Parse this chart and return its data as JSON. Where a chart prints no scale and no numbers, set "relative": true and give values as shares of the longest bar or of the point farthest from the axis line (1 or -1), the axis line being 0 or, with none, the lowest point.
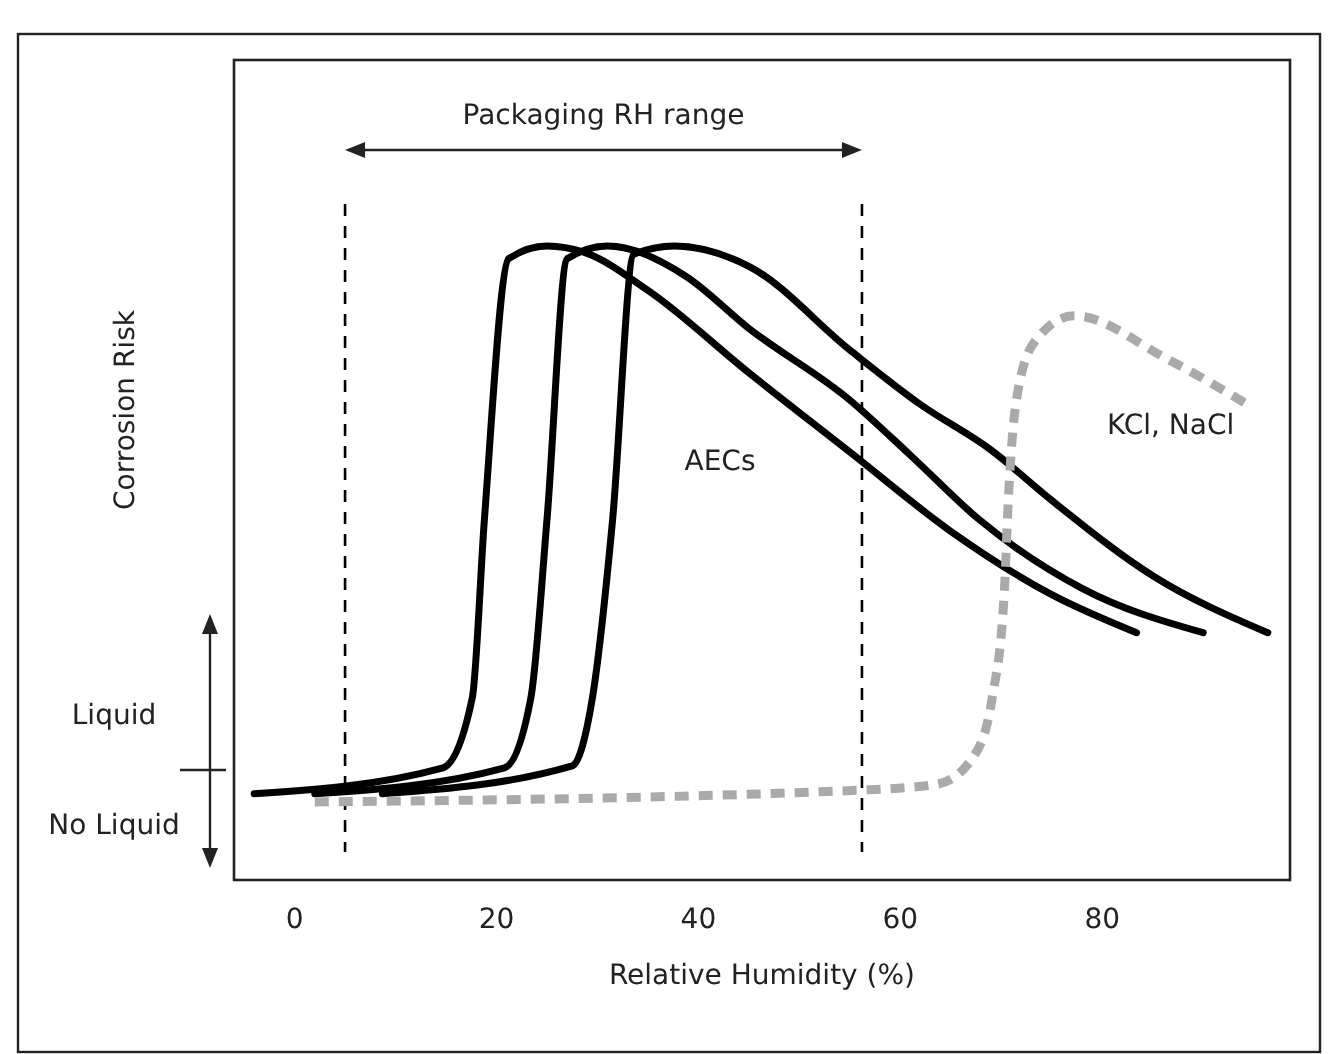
{
  "chart_data": {
    "type": "line",
    "relative": true,
    "xlabel": "Relative Humidity (%)",
    "ylabel": "Corrosion Risk",
    "xlim": [
      -6,
      98.6
    ],
    "xticks": [
      0,
      20,
      40,
      60,
      80
    ],
    "grid": false,
    "tick_labels": "x",
    "series": [
      {
        "color": "#000000",
        "line_style": "solid",
        "x": [
          -4,
          14.7,
          17.6,
          18.8,
          21.2,
          25,
          28.7,
          35,
          45,
          55,
          65,
          75,
          83.4
        ],
        "values": [
          0.136,
          0.177,
          0.287,
          0.568,
          0.98,
          1,
          0.99,
          0.93,
          0.8,
          0.675,
          0.55,
          0.45,
          0.39
        ]
      },
      {
        "color": "#000000",
        "line_style": "solid",
        "x": [
          2,
          20.8,
          23.4,
          25,
          27,
          31,
          38.6,
          45,
          55,
          61,
          67.7,
          78,
          90
        ],
        "values": [
          0.136,
          0.177,
          0.287,
          0.568,
          0.98,
          1,
          0.954,
          0.87,
          0.757,
          0.67,
          0.57,
          0.46,
          0.39
        ]
      },
      {
        "color": "#000000",
        "line_style": "solid",
        "x": [
          8.7,
          27.5,
          29.5,
          31.5,
          33.6,
          37.6,
          45,
          55,
          62,
          69,
          74.9,
          85,
          96.4
        ],
        "values": [
          0.136,
          0.18,
          0.287,
          0.568,
          0.987,
          1,
          0.968,
          0.836,
          0.75,
          0.678,
          0.6,
          0.48,
          0.39
        ]
      },
      {
        "name": "KCl, NaCl",
        "color": "#aaaaaa",
        "line_style": "dashed",
        "x": [
          2,
          56.4,
          63.6,
          67.3,
          69.1,
          70.3,
          70.7,
          71.5,
          73.3,
          77.2,
          86.3,
          94.3
        ],
        "values": [
          0.123,
          0.142,
          0.151,
          0.196,
          0.287,
          0.454,
          0.6,
          0.757,
          0.849,
          0.89,
          0.823,
          0.751
        ]
      }
    ],
    "ref_lines": [
      {
        "axis": "x",
        "value": 5,
        "color": "#000000",
        "line_style": "dashed"
      },
      {
        "axis": "x",
        "value": 56.2,
        "color": "#000000",
        "line_style": "dashed"
      }
    ],
    "annotations": [
      "Packaging RH range",
      "Liquid",
      "No Liquid",
      "AECs"
    ]
  }
}
